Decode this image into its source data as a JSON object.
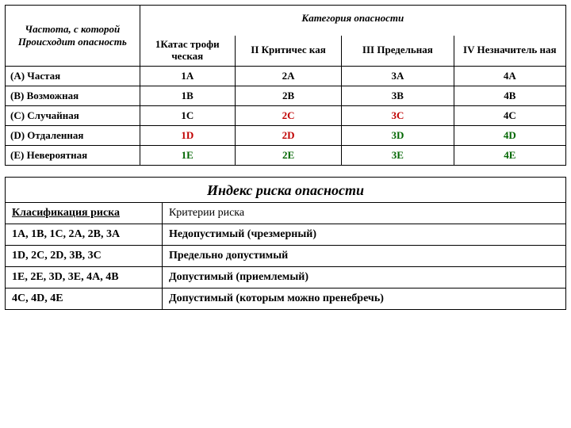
{
  "main": {
    "freq_header": "Частота, с которой Происходит опасность",
    "cat_header": "Категория опасности",
    "columns": [
      "1Катас трофи ческая",
      "II Критичес кая",
      "III Предельная",
      "IV Незначитель ная"
    ],
    "rows": [
      {
        "label": "(A) Частая",
        "cells": [
          "1A",
          "2A",
          "3A",
          "4A"
        ],
        "colors": [
          "#000",
          "#000",
          "#000",
          "#000"
        ]
      },
      {
        "label": "(B) Возможная",
        "cells": [
          "1B",
          "2B",
          "3B",
          "4B"
        ],
        "colors": [
          "#000",
          "#000",
          "#000",
          "#000"
        ]
      },
      {
        "label": "(C) Случайная",
        "cells": [
          "1C",
          "2C",
          "3C",
          "4C"
        ],
        "colors": [
          "#000",
          "#c00000",
          "#c00000",
          "#000"
        ]
      },
      {
        "label": "(D) Отдаленная",
        "cells": [
          "1D",
          "2D",
          "3D",
          "4D"
        ],
        "colors": [
          "#c00000",
          "#c00000",
          "#006600",
          "#006600"
        ]
      },
      {
        "label": "(E) Невероятная",
        "cells": [
          "1E",
          "2E",
          "3E",
          "4E"
        ],
        "colors": [
          "#006600",
          "#006600",
          "#006600",
          "#006600"
        ]
      }
    ]
  },
  "index": {
    "title": "Индекс риска опасности",
    "header_left": "Класификация риска",
    "header_right": "Критерии риска",
    "rows": [
      {
        "left": "1A, 1B, 1C, 2A, 2B, 3A",
        "right": "Недопустимый (чрезмерный)"
      },
      {
        "left": "1D, 2C, 2D, 3B, 3C",
        "right": "Предельно допустимый"
      },
      {
        "left": "1E, 2E, 3D, 3E, 4A, 4B",
        "right": "Допустимый  (приемлемый)"
      },
      {
        "left": "4C, 4D, 4E",
        "right": "Допустимый (которым можно пренебречь)"
      }
    ]
  }
}
